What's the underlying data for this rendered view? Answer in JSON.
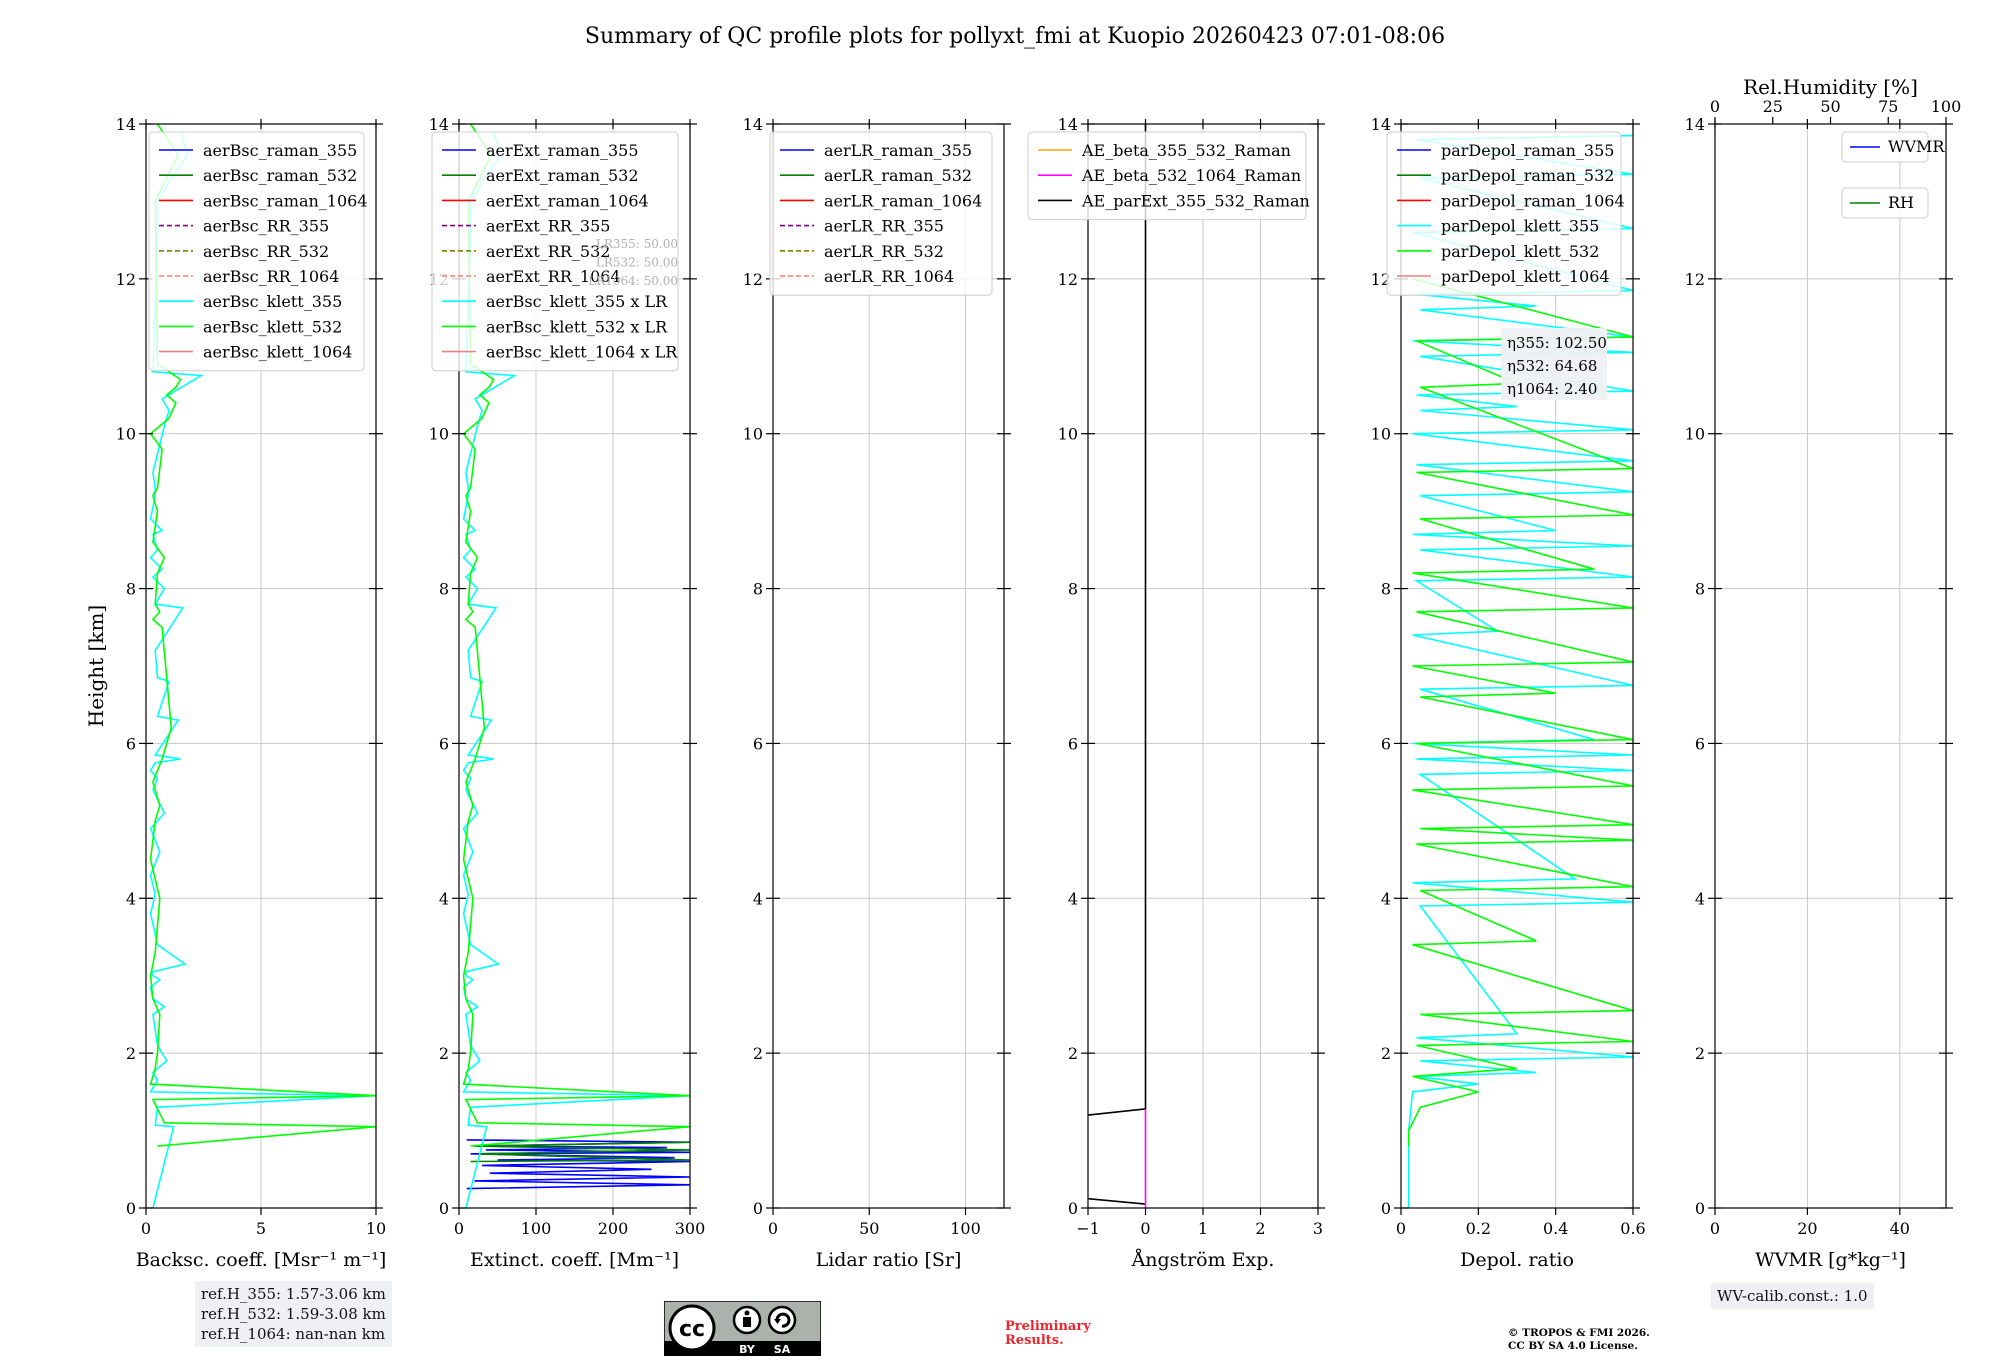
{
  "figure_title": "Summary of QC profile plots for pollyxt_fmi at Kuopio 20260423 07:01-08:06",
  "colors": {
    "raman_355": "#0000ff",
    "raman_532": "#008000",
    "raman_1064": "#ff0000",
    "rr_355": "#800080",
    "rr_532": "#808000",
    "rr_1064": "#fa8072",
    "klett_355": "#00ffff",
    "klett_532": "#00ff00",
    "klett_1064": "#f08080",
    "ae_beta_355_532": "#ffa500",
    "ae_beta_532_1064": "#ff00ff",
    "ae_parext": "#000000",
    "wvmr": "#0000ff",
    "rh": "#008000",
    "grid": "#c8c8c8",
    "legend_bg": "#ffffff"
  },
  "footer": {
    "ref_heights": [
      "ref.H_355: 1.57-3.06 km",
      "ref.H_532: 1.59-3.08 km",
      "ref.H_1064: nan-nan km"
    ],
    "preliminary": [
      "Preliminary",
      "Results."
    ],
    "copyright": [
      "© TROPOS & FMI 2026.",
      "CC BY SA 4.0 License."
    ],
    "wv_calib": "WV-calib.const.: 1.0",
    "license_badge": [
      "cc",
      "BY",
      "SA"
    ]
  },
  "chart_data": [
    {
      "type": "line",
      "id": "backscatter",
      "xlabel": "Backsc. coeff. [Msr⁻¹ m⁻¹]",
      "ylabel": "Height [km]",
      "xlim": [
        0,
        10
      ],
      "ylim": [
        0,
        14
      ],
      "xticks": [
        0,
        5,
        10
      ],
      "yticks": [
        0,
        2,
        4,
        6,
        8,
        10,
        12,
        14
      ],
      "grid": true,
      "legend_position": "top-right",
      "legend": [
        "aerBsc_raman_355",
        "aerBsc_raman_532",
        "aerBsc_raman_1064",
        "aerBsc_RR_355",
        "aerBsc_RR_532",
        "aerBsc_RR_1064",
        "aerBsc_klett_355",
        "aerBsc_klett_532",
        "aerBsc_klett_1064"
      ],
      "series": [
        {
          "name": "aerBsc_klett_355",
          "x": [
            0.3,
            1.2,
            0.4,
            0.5,
            10,
            0.2,
            0.5,
            0.3,
            0.9,
            0.5,
            0.3,
            0.8,
            0.3,
            0.2,
            0.6,
            0.3,
            0.3,
            1.7,
            0.5,
            0.2,
            0.4,
            0.2,
            0.6,
            0.2,
            0.8,
            0.3,
            0.5,
            0.2,
            0.4,
            1.5,
            0.4,
            1.4,
            0.5,
            1.0,
            0.5,
            0.4,
            1.6,
            0.4,
            0.8,
            0.3,
            0.7,
            0.2,
            0.5,
            0.3,
            0.7,
            0.2,
            0.4,
            0.4,
            0.3,
            0.8,
            1.0,
            0.7,
            2.4,
            0.3,
            0.5,
            0.5,
            1.1,
            1.8,
            1.5
          ],
          "y": [
            0.0,
            1.05,
            1.07,
            1.3,
            1.45,
            1.5,
            1.65,
            1.75,
            1.9,
            2.1,
            2.5,
            2.6,
            2.7,
            2.85,
            2.95,
            3.0,
            3.05,
            3.15,
            3.4,
            3.8,
            4.05,
            4.3,
            4.6,
            4.9,
            5.1,
            5.4,
            5.55,
            5.65,
            5.75,
            5.8,
            5.85,
            6.3,
            6.35,
            6.8,
            6.85,
            7.2,
            7.75,
            7.8,
            8.0,
            8.15,
            8.25,
            8.4,
            8.5,
            8.7,
            8.75,
            8.9,
            9.2,
            9.3,
            9.5,
            10.1,
            10.3,
            10.45,
            10.75,
            10.8,
            12.6,
            13.0,
            13.3,
            13.6,
            13.9
          ]
        },
        {
          "name": "aerBsc_klett_532",
          "x": [
            0.5,
            10,
            0.8,
            0.3,
            10,
            0.2,
            0.4,
            0.5,
            0.6,
            0.3,
            0.2,
            0.4,
            0.6,
            0.2,
            0.4,
            0.6,
            0.3,
            0.7,
            1.1,
            0.7,
            0.3,
            0.6,
            0.4,
            0.5,
            0.8,
            0.3,
            0.5,
            0.3,
            0.5,
            0.7,
            0.2,
            0.6,
            1.0,
            1.3,
            0.9,
            1.3,
            1.5,
            0.5,
            0.4,
            1.4,
            0.5
          ],
          "y": [
            0.8,
            1.05,
            1.1,
            1.4,
            1.45,
            1.6,
            1.8,
            2.0,
            2.5,
            2.7,
            3.0,
            3.3,
            4.0,
            4.5,
            5.0,
            5.2,
            5.5,
            5.8,
            6.2,
            7.5,
            7.6,
            7.7,
            7.8,
            8.2,
            8.4,
            8.6,
            9.0,
            9.2,
            9.3,
            9.8,
            10.0,
            10.1,
            10.2,
            10.4,
            10.5,
            10.6,
            10.7,
            10.9,
            13.0,
            13.6,
            14.0
          ]
        }
      ]
    },
    {
      "type": "line",
      "id": "extinction",
      "xlabel": "Extinct. coeff. [Mm⁻¹]",
      "xlim": [
        0,
        300
      ],
      "ylim": [
        0,
        14
      ],
      "xticks": [
        0,
        100,
        200,
        300
      ],
      "yticks": [
        0,
        2,
        4,
        6,
        8,
        10,
        12,
        14
      ],
      "grid": true,
      "legend_position": "top-right",
      "legend": [
        "aerExt_raman_355",
        "aerExt_raman_532",
        "aerExt_raman_1064",
        "aerExt_RR_355",
        "aerExt_RR_532",
        "aerExt_RR_1064",
        "aerBsc_klett_355 x LR",
        "aerBsc_klett_532 x LR",
        "aerBsc_klett_1064 x LR"
      ],
      "lr_annotation": [
        "LR355: 50.00",
        "LR532: 50.00",
        "LR1064: 50.00"
      ],
      "series": [
        {
          "name": "aerExt_raman_355",
          "x": [
            10,
            300,
            20,
            300,
            40,
            250,
            30,
            300,
            50,
            280,
            15,
            300,
            35,
            270,
            20,
            300,
            10
          ],
          "y": [
            0.25,
            0.3,
            0.35,
            0.4,
            0.45,
            0.5,
            0.55,
            0.6,
            0.62,
            0.65,
            0.7,
            0.72,
            0.75,
            0.78,
            0.8,
            0.85,
            0.88
          ]
        },
        {
          "name": "aerExt_raman_532",
          "x": [
            15,
            300,
            25,
            300,
            20,
            300
          ],
          "y": [
            0.6,
            0.62,
            0.7,
            0.75,
            0.8,
            0.85
          ]
        },
        {
          "name": "aerBsc_klett_355 x LR",
          "scale_from": "aerBsc_klett_355",
          "factor": 30
        },
        {
          "name": "aerBsc_klett_532 x LR",
          "scale_from": "aerBsc_klett_532",
          "factor": 30
        }
      ]
    },
    {
      "type": "line",
      "id": "lidar_ratio",
      "xlabel": "Lidar ratio [Sr]",
      "xlim": [
        0,
        120
      ],
      "ylim": [
        0,
        14
      ],
      "xticks": [
        0,
        50,
        100
      ],
      "yticks": [
        0,
        2,
        4,
        6,
        8,
        10,
        12,
        14
      ],
      "grid": true,
      "legend_position": "top-right",
      "legend": [
        "aerLR_raman_355",
        "aerLR_raman_532",
        "aerLR_raman_1064",
        "aerLR_RR_355",
        "aerLR_RR_532",
        "aerLR_RR_1064"
      ],
      "series": []
    },
    {
      "type": "line",
      "id": "angstrom",
      "xlabel": "Ångström Exp.",
      "xlim": [
        -1,
        3
      ],
      "ylim": [
        0,
        14
      ],
      "xticks": [
        -1,
        0,
        1,
        2,
        3
      ],
      "yticks": [
        0,
        2,
        4,
        6,
        8,
        10,
        12,
        14
      ],
      "grid": true,
      "legend_position": "top-right",
      "legend": [
        "AE_beta_355_532_Raman",
        "AE_beta_532_1064_Raman",
        "AE_parExt_355_532_Raman"
      ],
      "series": [
        {
          "name": "AE_parExt_355_532_Raman",
          "x": [
            -1,
            0,
            0,
            0
          ],
          "y": [
            1.2,
            1.28,
            1.28,
            14
          ]
        },
        {
          "name": "AE_parExt_355_532_Raman low",
          "x": [
            -1,
            0
          ],
          "y": [
            0.12,
            0.05
          ]
        },
        {
          "name": "AE_beta_532_1064_Raman",
          "x": [
            0,
            0
          ],
          "y": [
            0,
            1.28
          ]
        }
      ]
    },
    {
      "type": "line",
      "id": "depol",
      "xlabel": "Depol. ratio",
      "xlim": [
        0,
        0.6
      ],
      "ylim": [
        0,
        14
      ],
      "xticks": [
        0.0,
        0.2,
        0.4,
        0.6
      ],
      "yticks": [
        0,
        2,
        4,
        6,
        8,
        10,
        12,
        14
      ],
      "grid": true,
      "legend_position": "top-right",
      "legend": [
        "parDepol_raman_355",
        "parDepol_raman_532",
        "parDepol_raman_1064",
        "parDepol_klett_355",
        "parDepol_klett_532",
        "parDepol_klett_1064"
      ],
      "eta": [
        "η355: 102.50",
        "η532: 64.68",
        "η1064: 2.40"
      ],
      "series": [
        {
          "name": "parDepol_klett_355",
          "x": [
            0.02,
            0.02,
            0.03,
            0.2,
            0.04,
            0.35,
            0.05,
            0.6,
            0.04,
            0.3,
            0.05,
            0.6,
            0.03,
            0.45,
            0.05,
            0.6,
            0.04,
            0.6,
            0.03,
            0.5,
            0.05,
            0.6,
            0.03,
            0.25,
            0.04,
            0.6,
            0.05,
            0.6,
            0.03,
            0.4,
            0.05,
            0.6,
            0.04,
            0.6,
            0.03,
            0.6,
            0.05,
            0.3,
            0.04,
            0.6,
            0.05,
            0.6,
            0.03,
            0.6,
            0.05,
            0.35,
            0.04,
            0.6,
            0.03,
            0.6,
            0.05,
            0.6,
            0.04,
            0.6
          ],
          "y": [
            0.0,
            1.0,
            1.5,
            1.6,
            1.7,
            1.75,
            1.9,
            1.95,
            2.2,
            2.25,
            3.9,
            3.95,
            4.2,
            4.25,
            5.6,
            5.65,
            5.8,
            5.85,
            6.0,
            6.05,
            6.7,
            6.75,
            7.4,
            7.45,
            8.1,
            8.15,
            8.5,
            8.55,
            8.7,
            8.75,
            9.2,
            9.25,
            9.6,
            9.65,
            10.0,
            10.05,
            10.3,
            10.35,
            10.5,
            10.55,
            11.0,
            11.05,
            11.2,
            11.25,
            11.6,
            11.65,
            11.8,
            11.85,
            12.6,
            12.65,
            13.3,
            13.35,
            13.8,
            13.85
          ]
        },
        {
          "name": "parDepol_klett_532",
          "x": [
            0.02,
            0.02,
            0.05,
            0.2,
            0.03,
            0.3,
            0.04,
            0.6,
            0.05,
            0.6,
            0.03,
            0.35,
            0.05,
            0.6,
            0.04,
            0.6,
            0.05,
            0.6,
            0.03,
            0.6,
            0.04,
            0.6,
            0.05,
            0.4,
            0.03,
            0.6,
            0.04,
            0.6,
            0.03,
            0.5,
            0.05,
            0.6,
            0.04,
            0.6,
            0.05,
            0.3,
            0.04,
            0.6,
            0.03
          ],
          "y": [
            0.8,
            1.0,
            1.3,
            1.5,
            1.7,
            1.8,
            2.1,
            2.15,
            2.5,
            2.55,
            3.4,
            3.45,
            4.1,
            4.15,
            4.7,
            4.75,
            4.9,
            4.95,
            5.4,
            5.45,
            6.0,
            6.05,
            6.6,
            6.65,
            7.0,
            7.05,
            7.7,
            7.75,
            8.2,
            8.25,
            8.9,
            8.95,
            9.5,
            9.55,
            10.6,
            10.65,
            11.2,
            11.25,
            12.0
          ]
        }
      ]
    },
    {
      "type": "line",
      "id": "wvmr",
      "xlabel": "WVMR [g*kg⁻¹]",
      "x2label": "Rel.Humidity [%]",
      "xlim": [
        0,
        50
      ],
      "x2lim": [
        0,
        100
      ],
      "ylim": [
        0,
        14
      ],
      "xticks": [
        0,
        20,
        40
      ],
      "x2ticks": [
        0,
        25,
        50,
        75,
        100
      ],
      "yticks": [
        0,
        2,
        4,
        6,
        8,
        10,
        12,
        14
      ],
      "grid": true,
      "legend": [
        "WVMR",
        "RH"
      ],
      "legend_position": "top-right",
      "series": []
    }
  ]
}
